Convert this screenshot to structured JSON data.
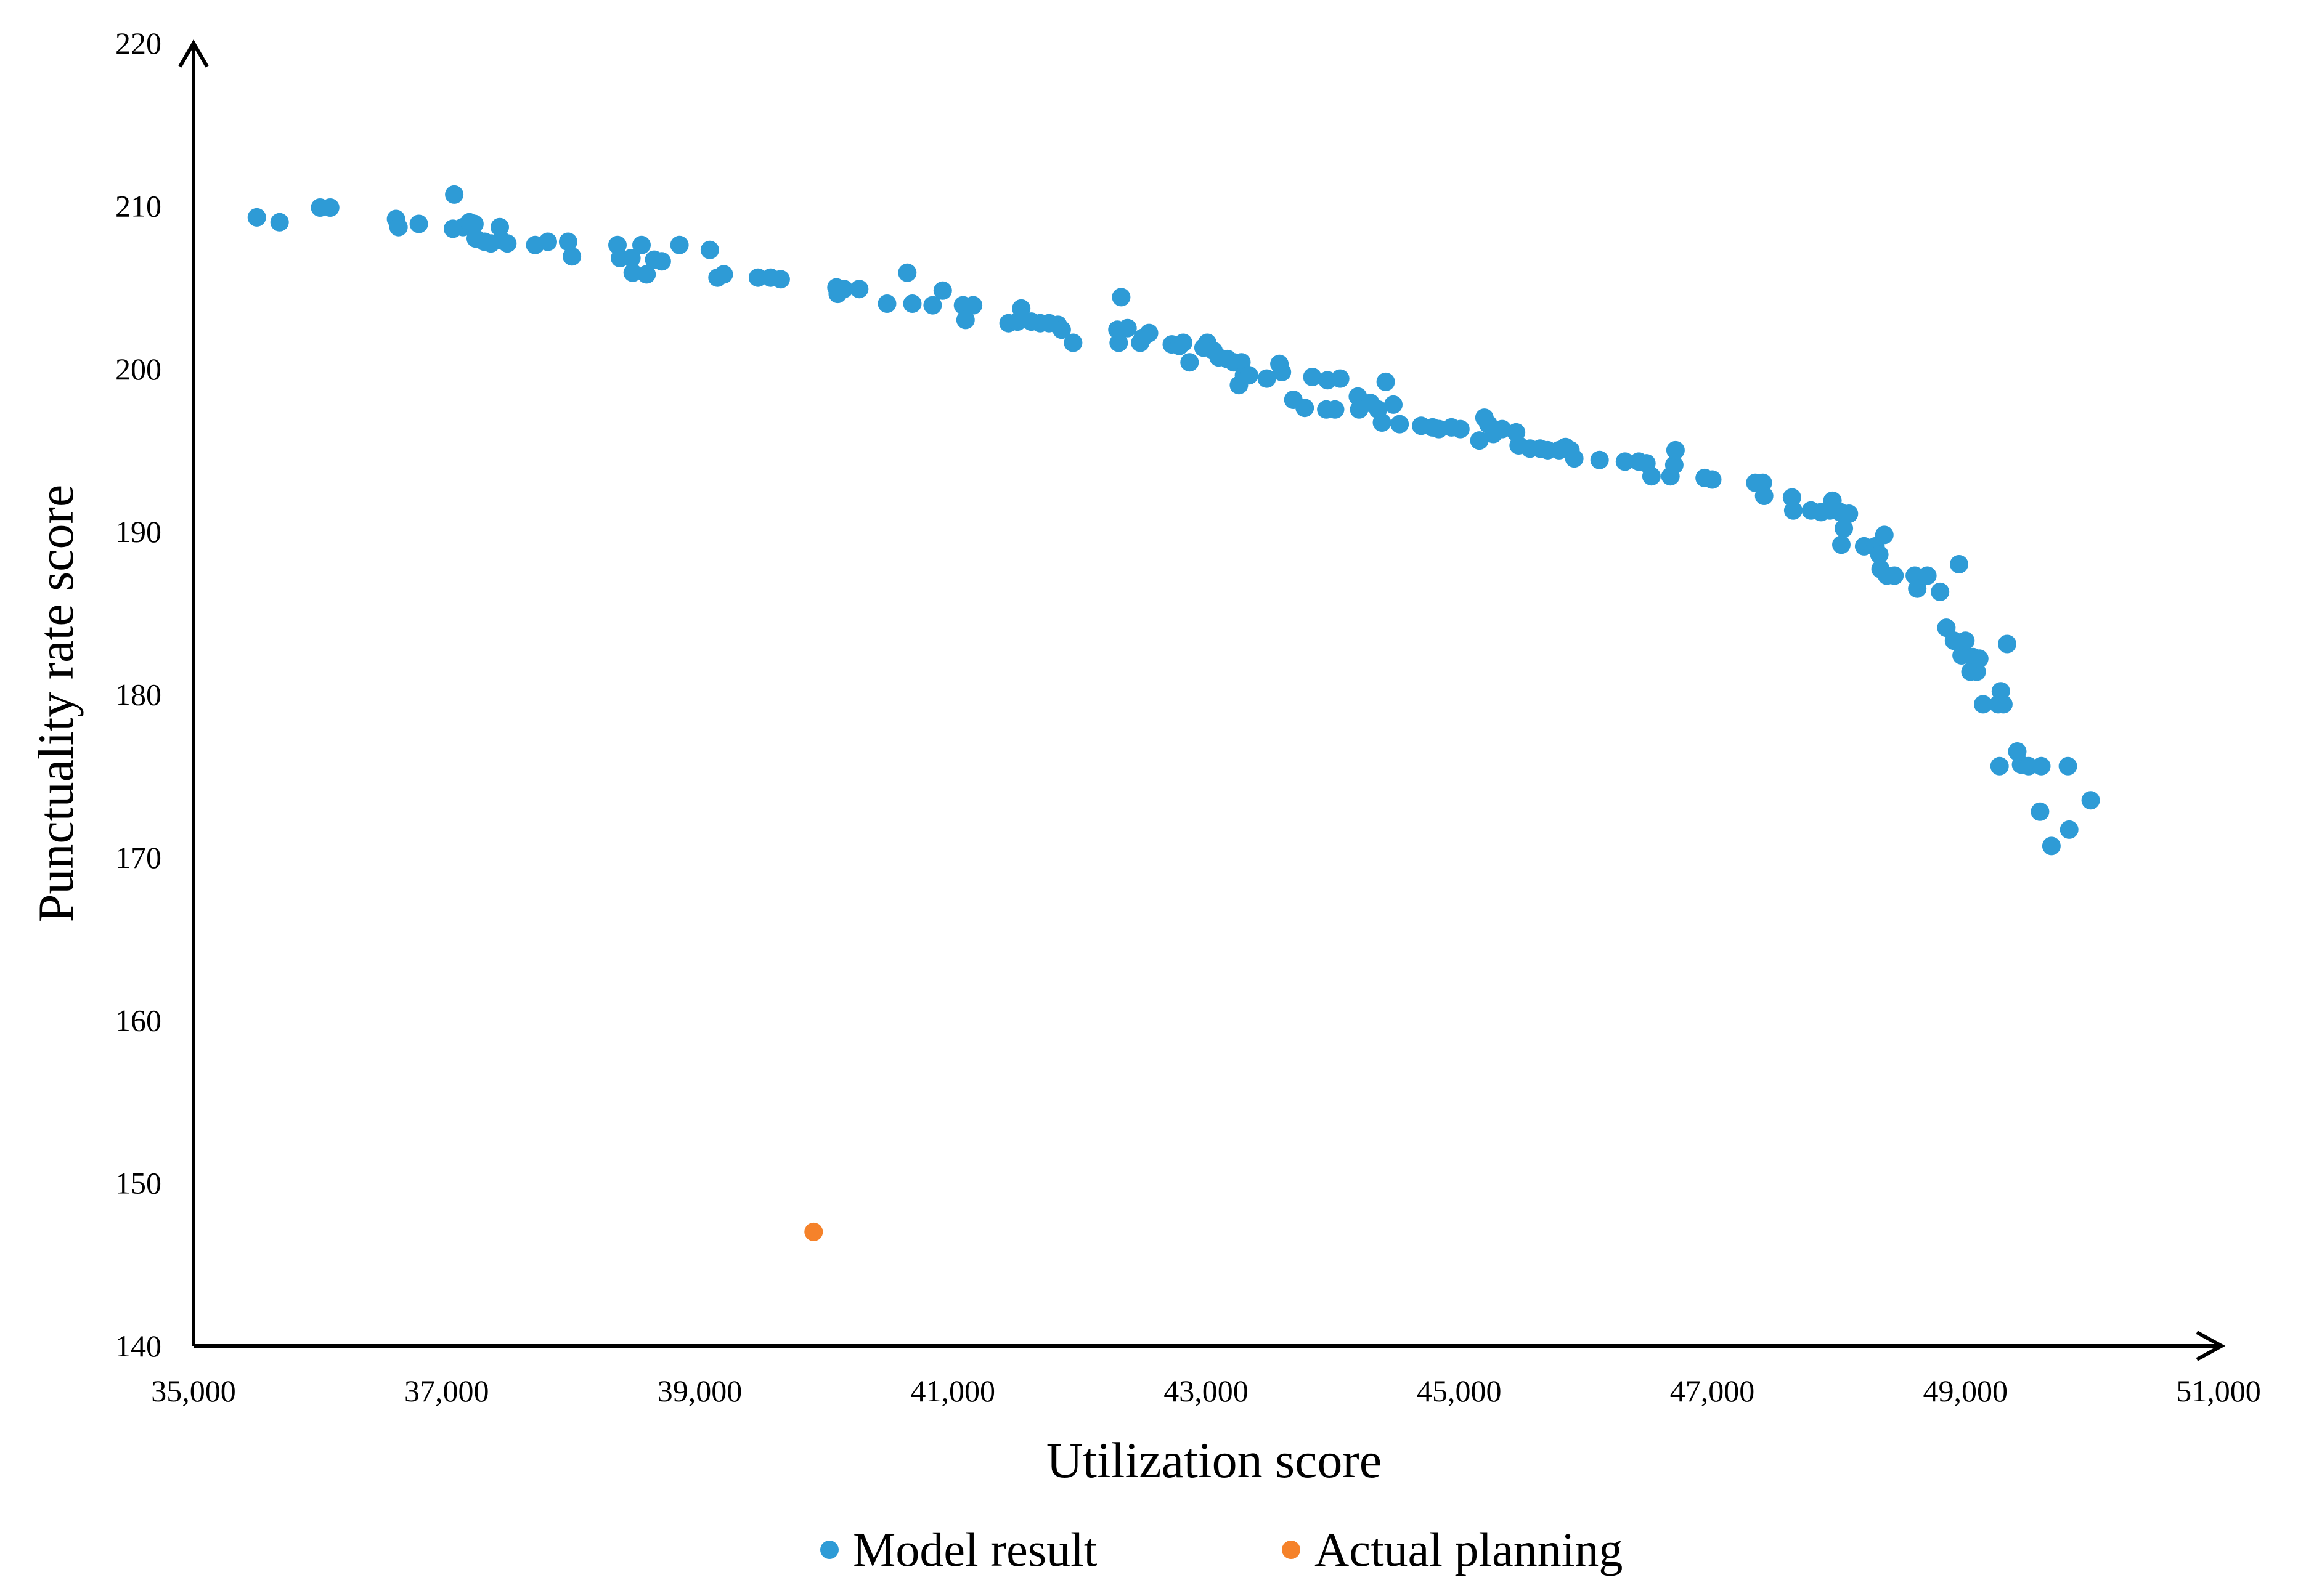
{
  "chart_data": {
    "type": "scatter",
    "title": "",
    "xlabel": "Utilization score",
    "ylabel": "Punctuality rate score",
    "xlim": [
      35000,
      51000
    ],
    "ylim": [
      140,
      220
    ],
    "xticks": [
      "35,000",
      "37,000",
      "39,000",
      "41,000",
      "43,000",
      "45,000",
      "47,000",
      "49,000",
      "51,000"
    ],
    "yticks": [
      "140",
      "150",
      "160",
      "170",
      "180",
      "190",
      "200",
      "210",
      "220"
    ],
    "grid": false,
    "legend_position": "bottom",
    "series": [
      {
        "name": "Model result",
        "color": "#2E9BD6",
        "points": [
          [
            35500,
            209.3
          ],
          [
            35680,
            209.0
          ],
          [
            36000,
            209.9
          ],
          [
            36080,
            209.9
          ],
          [
            36600,
            209.2
          ],
          [
            36620,
            208.7
          ],
          [
            36780,
            208.9
          ],
          [
            37050,
            208.6
          ],
          [
            37060,
            210.7
          ],
          [
            37130,
            208.7
          ],
          [
            37180,
            209.0
          ],
          [
            37220,
            208.9
          ],
          [
            37230,
            208.0
          ],
          [
            37300,
            207.8
          ],
          [
            37350,
            207.7
          ],
          [
            37420,
            208.7
          ],
          [
            37430,
            207.9
          ],
          [
            37480,
            207.7
          ],
          [
            37700,
            207.6
          ],
          [
            37800,
            207.8
          ],
          [
            37960,
            207.8
          ],
          [
            37990,
            206.9
          ],
          [
            38350,
            207.6
          ],
          [
            38370,
            206.8
          ],
          [
            38460,
            206.8
          ],
          [
            38470,
            205.9
          ],
          [
            38540,
            207.6
          ],
          [
            38580,
            205.8
          ],
          [
            38640,
            206.7
          ],
          [
            38700,
            206.6
          ],
          [
            38840,
            207.6
          ],
          [
            39080,
            207.3
          ],
          [
            39140,
            205.6
          ],
          [
            39190,
            205.8
          ],
          [
            39460,
            205.6
          ],
          [
            39560,
            205.6
          ],
          [
            39640,
            205.5
          ],
          [
            40080,
            205.0
          ],
          [
            40090,
            204.6
          ],
          [
            40140,
            204.9
          ],
          [
            40260,
            204.9
          ],
          [
            40480,
            204.0
          ],
          [
            40640,
            205.9
          ],
          [
            40680,
            204.0
          ],
          [
            40840,
            203.9
          ],
          [
            40920,
            204.8
          ],
          [
            41080,
            203.9
          ],
          [
            41100,
            203.0
          ],
          [
            41160,
            203.9
          ],
          [
            41440,
            202.8
          ],
          [
            41510,
            202.9
          ],
          [
            41540,
            203.7
          ],
          [
            41620,
            202.9
          ],
          [
            41690,
            202.8
          ],
          [
            41760,
            202.8
          ],
          [
            41830,
            202.7
          ],
          [
            41860,
            202.4
          ],
          [
            41950,
            201.6
          ],
          [
            42300,
            202.4
          ],
          [
            42310,
            201.6
          ],
          [
            42330,
            204.4
          ],
          [
            42380,
            202.5
          ],
          [
            42480,
            201.6
          ],
          [
            42500,
            201.9
          ],
          [
            42550,
            202.2
          ],
          [
            42730,
            201.5
          ],
          [
            42790,
            201.4
          ],
          [
            42820,
            201.6
          ],
          [
            42870,
            200.4
          ],
          [
            42980,
            201.3
          ],
          [
            43010,
            201.6
          ],
          [
            43060,
            201.1
          ],
          [
            43100,
            200.7
          ],
          [
            43170,
            200.6
          ],
          [
            43220,
            200.4
          ],
          [
            43260,
            199.0
          ],
          [
            43280,
            200.4
          ],
          [
            43300,
            199.6
          ],
          [
            43340,
            199.6
          ],
          [
            43480,
            199.4
          ],
          [
            43580,
            200.3
          ],
          [
            43600,
            199.8
          ],
          [
            43690,
            198.1
          ],
          [
            43780,
            197.6
          ],
          [
            43840,
            199.5
          ],
          [
            43950,
            197.5
          ],
          [
            43960,
            199.3
          ],
          [
            44020,
            197.5
          ],
          [
            44060,
            199.4
          ],
          [
            44200,
            198.3
          ],
          [
            44210,
            197.5
          ],
          [
            44300,
            197.9
          ],
          [
            44360,
            197.5
          ],
          [
            44390,
            196.7
          ],
          [
            44420,
            199.2
          ],
          [
            44480,
            197.8
          ],
          [
            44530,
            196.6
          ],
          [
            44700,
            196.5
          ],
          [
            44790,
            196.4
          ],
          [
            44840,
            196.3
          ],
          [
            44940,
            196.4
          ],
          [
            45010,
            196.3
          ],
          [
            45160,
            195.6
          ],
          [
            45200,
            197.0
          ],
          [
            45230,
            196.6
          ],
          [
            45270,
            196.0
          ],
          [
            45340,
            196.3
          ],
          [
            45450,
            196.1
          ],
          [
            45470,
            195.3
          ],
          [
            45560,
            195.1
          ],
          [
            45640,
            195.1
          ],
          [
            45700,
            195.0
          ],
          [
            45790,
            195.0
          ],
          [
            45840,
            195.2
          ],
          [
            45880,
            195.0
          ],
          [
            45910,
            194.5
          ],
          [
            46110,
            194.4
          ],
          [
            46310,
            194.3
          ],
          [
            46420,
            194.3
          ],
          [
            46480,
            194.2
          ],
          [
            46520,
            193.4
          ],
          [
            46670,
            193.4
          ],
          [
            46700,
            194.1
          ],
          [
            46710,
            195.0
          ],
          [
            46940,
            193.3
          ],
          [
            47000,
            193.2
          ],
          [
            47340,
            193.0
          ],
          [
            47400,
            193.0
          ],
          [
            47410,
            192.2
          ],
          [
            47630,
            192.1
          ],
          [
            47640,
            191.3
          ],
          [
            47780,
            191.3
          ],
          [
            47860,
            191.2
          ],
          [
            47930,
            191.3
          ],
          [
            47950,
            191.9
          ],
          [
            48010,
            191.2
          ],
          [
            48020,
            189.2
          ],
          [
            48040,
            190.2
          ],
          [
            48080,
            191.1
          ],
          [
            48200,
            189.1
          ],
          [
            48290,
            189.1
          ],
          [
            48320,
            188.6
          ],
          [
            48330,
            187.7
          ],
          [
            48360,
            189.8
          ],
          [
            48380,
            187.3
          ],
          [
            48440,
            187.3
          ],
          [
            48600,
            187.3
          ],
          [
            48620,
            186.5
          ],
          [
            48700,
            187.3
          ],
          [
            48800,
            186.3
          ],
          [
            48950,
            188.0
          ],
          [
            48850,
            184.1
          ],
          [
            48910,
            183.3
          ],
          [
            48970,
            182.4
          ],
          [
            49000,
            183.3
          ],
          [
            49040,
            181.4
          ],
          [
            49060,
            182.3
          ],
          [
            49090,
            181.4
          ],
          [
            49110,
            182.2
          ],
          [
            49140,
            179.4
          ],
          [
            49260,
            179.4
          ],
          [
            49280,
            180.2
          ],
          [
            49300,
            179.4
          ],
          [
            49330,
            183.1
          ],
          [
            49270,
            175.6
          ],
          [
            49410,
            176.5
          ],
          [
            49440,
            175.7
          ],
          [
            49500,
            175.6
          ],
          [
            49600,
            175.6
          ],
          [
            49810,
            175.6
          ],
          [
            49590,
            172.8
          ],
          [
            49680,
            170.7
          ],
          [
            49820,
            171.7
          ],
          [
            49990,
            173.5
          ]
        ]
      },
      {
        "name": "Actual planning",
        "color": "#F5822A",
        "points": [
          [
            39900,
            147.0
          ]
        ]
      }
    ]
  }
}
